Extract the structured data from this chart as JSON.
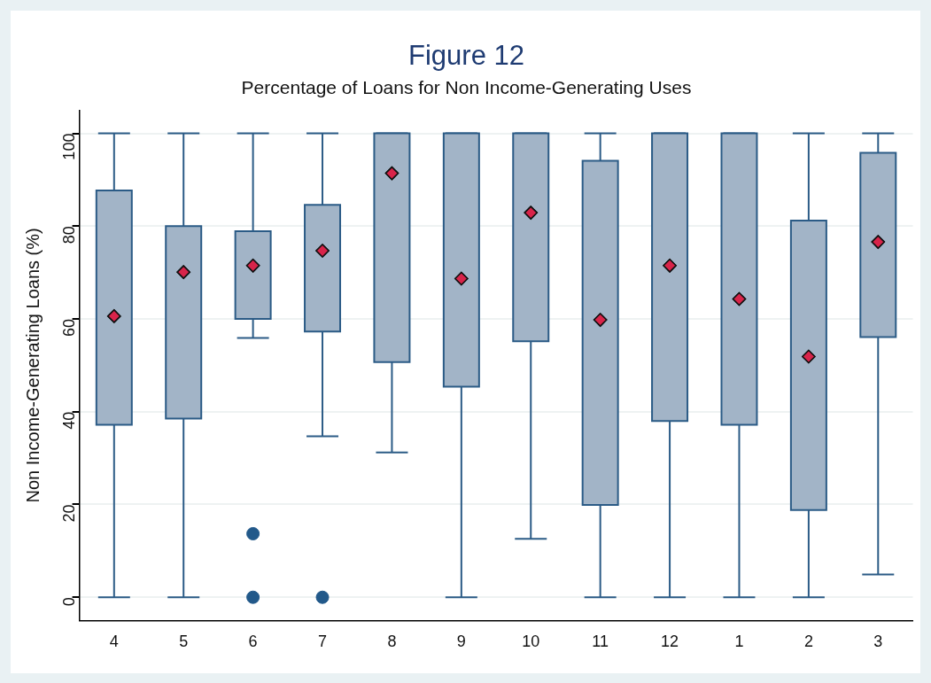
{
  "chart_data": {
    "type": "box",
    "title": "Figure 12",
    "subtitle": "Percentage of Loans for Non Income-Generating Uses",
    "ylabel": "Non Income-Generating Loans (%)",
    "categories": [
      "4",
      "5",
      "6",
      "7",
      "8",
      "9",
      "10",
      "11",
      "12",
      "1",
      "2",
      "3"
    ],
    "color": "#a2b4c7",
    "grid": "y",
    "legend": false,
    "ylim": [
      -5,
      105
    ],
    "yticks": [
      0,
      20,
      40,
      60,
      80,
      100
    ],
    "boxes": [
      {
        "low": 0,
        "q1": 37.2,
        "median": 60.6,
        "q3": 87.7,
        "high": 100
      },
      {
        "low": 0,
        "q1": 38.5,
        "median": 70.1,
        "q3": 80,
        "high": 100
      },
      {
        "low": 55.9,
        "q1": 60,
        "median": 71.5,
        "q3": 78.9,
        "high": 100,
        "outliers": [
          13.7,
          0
        ]
      },
      {
        "low": 34.7,
        "q1": 57.3,
        "median": 74.7,
        "q3": 84.6,
        "high": 100,
        "outliers": [
          0
        ]
      },
      {
        "low": 31.2,
        "q1": 50.7,
        "median": 91.4,
        "q3": 100,
        "high": 100
      },
      {
        "low": 0,
        "q1": 45.4,
        "median": 68.7,
        "q3": 100,
        "high": 100
      },
      {
        "low": 12.6,
        "q1": 55.2,
        "median": 82.9,
        "q3": 100,
        "high": 100
      },
      {
        "low": 0,
        "q1": 19.9,
        "median": 59.8,
        "q3": 94.1,
        "high": 100
      },
      {
        "low": 0,
        "q1": 38,
        "median": 71.5,
        "q3": 100,
        "high": 100
      },
      {
        "low": 0,
        "q1": 37.2,
        "median": 64.3,
        "q3": 100,
        "high": 100
      },
      {
        "low": 0,
        "q1": 18.8,
        "median": 51.9,
        "q3": 81.2,
        "high": 100
      },
      {
        "low": 4.9,
        "q1": 56.1,
        "median": 76.6,
        "q3": 95.8,
        "high": 100
      }
    ]
  }
}
